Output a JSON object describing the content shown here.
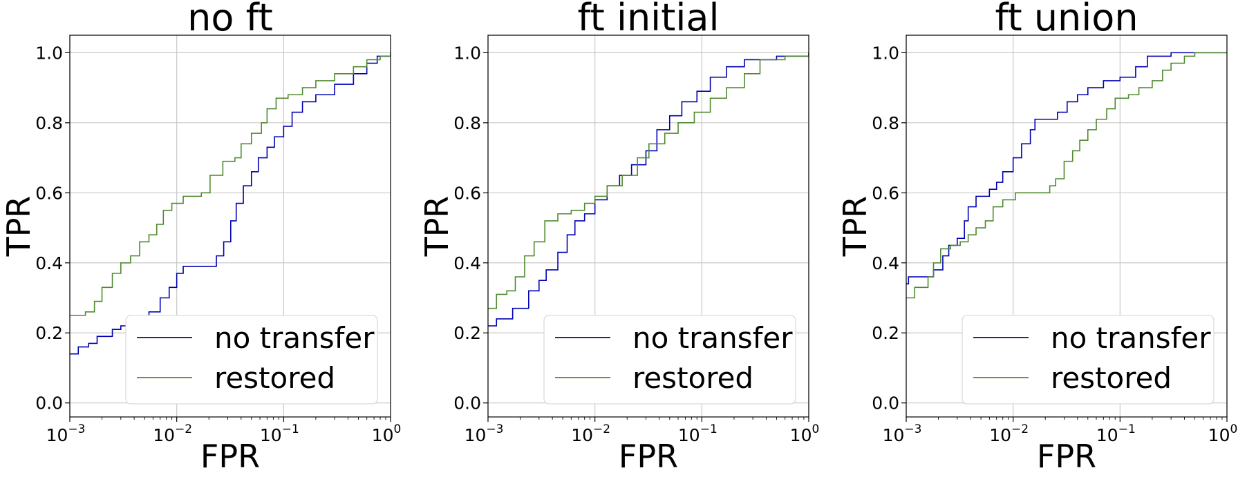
{
  "chart_data": [
    {
      "type": "line",
      "title": "no ft",
      "xlabel": "FPR",
      "ylabel": "TPR",
      "xscale": "log",
      "xlim": [
        0.001,
        1
      ],
      "ylim": [
        -0.04,
        1.05
      ],
      "grid": true,
      "legend_position": "lower-right",
      "x_ticks": [
        {
          "base": "10",
          "exp": "−3"
        },
        {
          "base": "10",
          "exp": "−2"
        },
        {
          "base": "10",
          "exp": "−1"
        },
        {
          "base": "10",
          "exp": "0"
        }
      ],
      "y_ticks": [
        "0.0",
        "0.2",
        "0.4",
        "0.6",
        "0.8",
        "1.0"
      ],
      "series": [
        {
          "name": "no transfer",
          "color": "#0000b3",
          "points": [
            [
              0.001,
              0.14
            ],
            [
              0.0012,
              0.16
            ],
            [
              0.0015,
              0.17
            ],
            [
              0.0018,
              0.19
            ],
            [
              0.0025,
              0.21
            ],
            [
              0.003,
              0.22
            ],
            [
              0.0045,
              0.23
            ],
            [
              0.0055,
              0.26
            ],
            [
              0.007,
              0.3
            ],
            [
              0.0085,
              0.33
            ],
            [
              0.01,
              0.37
            ],
            [
              0.0115,
              0.39
            ],
            [
              0.02,
              0.39
            ],
            [
              0.0235,
              0.42
            ],
            [
              0.0275,
              0.46
            ],
            [
              0.032,
              0.52
            ],
            [
              0.036,
              0.57
            ],
            [
              0.042,
              0.62
            ],
            [
              0.05,
              0.66
            ],
            [
              0.058,
              0.7
            ],
            [
              0.07,
              0.73
            ],
            [
              0.082,
              0.76
            ],
            [
              0.1,
              0.79
            ],
            [
              0.12,
              0.83
            ],
            [
              0.15,
              0.86
            ],
            [
              0.2,
              0.88
            ],
            [
              0.3,
              0.91
            ],
            [
              0.45,
              0.94
            ],
            [
              0.6,
              0.97
            ],
            [
              0.75,
              0.99
            ],
            [
              1.0,
              1.0
            ]
          ]
        },
        {
          "name": "restored",
          "color": "#4f8a2e",
          "points": [
            [
              0.001,
              0.25
            ],
            [
              0.0014,
              0.26
            ],
            [
              0.0017,
              0.29
            ],
            [
              0.002,
              0.33
            ],
            [
              0.0025,
              0.37
            ],
            [
              0.003,
              0.4
            ],
            [
              0.0037,
              0.42
            ],
            [
              0.0045,
              0.46
            ],
            [
              0.0055,
              0.48
            ],
            [
              0.0065,
              0.51
            ],
            [
              0.0075,
              0.55
            ],
            [
              0.009,
              0.57
            ],
            [
              0.0115,
              0.59
            ],
            [
              0.017,
              0.6
            ],
            [
              0.0205,
              0.65
            ],
            [
              0.027,
              0.69
            ],
            [
              0.035,
              0.7
            ],
            [
              0.04,
              0.74
            ],
            [
              0.05,
              0.77
            ],
            [
              0.062,
              0.8
            ],
            [
              0.07,
              0.84
            ],
            [
              0.085,
              0.87
            ],
            [
              0.11,
              0.88
            ],
            [
              0.15,
              0.9
            ],
            [
              0.2,
              0.92
            ],
            [
              0.3,
              0.94
            ],
            [
              0.45,
              0.96
            ],
            [
              0.6,
              0.98
            ],
            [
              0.8,
              0.99
            ],
            [
              1.0,
              1.0
            ]
          ]
        }
      ]
    },
    {
      "type": "line",
      "title": "ft initial",
      "xlabel": "FPR",
      "ylabel": "TPR",
      "xscale": "log",
      "xlim": [
        0.001,
        1
      ],
      "ylim": [
        -0.04,
        1.05
      ],
      "grid": true,
      "legend_position": "lower-right",
      "x_ticks": [
        {
          "base": "10",
          "exp": "−3"
        },
        {
          "base": "10",
          "exp": "−2"
        },
        {
          "base": "10",
          "exp": "−1"
        },
        {
          "base": "10",
          "exp": "0"
        }
      ],
      "y_ticks": [
        "0.0",
        "0.2",
        "0.4",
        "0.6",
        "0.8",
        "1.0"
      ],
      "series": [
        {
          "name": "no transfer",
          "color": "#0000b3",
          "points": [
            [
              0.001,
              0.22
            ],
            [
              0.0012,
              0.24
            ],
            [
              0.0017,
              0.27
            ],
            [
              0.0024,
              0.32
            ],
            [
              0.003,
              0.35
            ],
            [
              0.0035,
              0.38
            ],
            [
              0.0045,
              0.43
            ],
            [
              0.0055,
              0.48
            ],
            [
              0.0065,
              0.52
            ],
            [
              0.008,
              0.54
            ],
            [
              0.01,
              0.58
            ],
            [
              0.013,
              0.62
            ],
            [
              0.017,
              0.65
            ],
            [
              0.022,
              0.68
            ],
            [
              0.03,
              0.72
            ],
            [
              0.038,
              0.78
            ],
            [
              0.05,
              0.82
            ],
            [
              0.065,
              0.86
            ],
            [
              0.09,
              0.89
            ],
            [
              0.12,
              0.93
            ],
            [
              0.17,
              0.96
            ],
            [
              0.25,
              0.98
            ],
            [
              0.5,
              0.99
            ],
            [
              1.0,
              1.0
            ]
          ]
        },
        {
          "name": "restored",
          "color": "#4f8a2e",
          "points": [
            [
              0.001,
              0.27
            ],
            [
              0.0012,
              0.31
            ],
            [
              0.0015,
              0.32
            ],
            [
              0.0018,
              0.36
            ],
            [
              0.0022,
              0.42
            ],
            [
              0.0027,
              0.46
            ],
            [
              0.0034,
              0.52
            ],
            [
              0.0045,
              0.54
            ],
            [
              0.006,
              0.55
            ],
            [
              0.008,
              0.57
            ],
            [
              0.01,
              0.59
            ],
            [
              0.013,
              0.62
            ],
            [
              0.018,
              0.65
            ],
            [
              0.025,
              0.7
            ],
            [
              0.032,
              0.74
            ],
            [
              0.045,
              0.77
            ],
            [
              0.06,
              0.8
            ],
            [
              0.085,
              0.83
            ],
            [
              0.12,
              0.87
            ],
            [
              0.17,
              0.9
            ],
            [
              0.25,
              0.94
            ],
            [
              0.35,
              0.98
            ],
            [
              0.6,
              0.99
            ],
            [
              1.0,
              1.0
            ]
          ]
        }
      ]
    },
    {
      "type": "line",
      "title": "ft union",
      "xlabel": "FPR",
      "ylabel": "TPR",
      "xscale": "log",
      "xlim": [
        0.001,
        1
      ],
      "ylim": [
        -0.04,
        1.05
      ],
      "grid": true,
      "legend_position": "lower-right",
      "x_ticks": [
        {
          "base": "10",
          "exp": "−3"
        },
        {
          "base": "10",
          "exp": "−2"
        },
        {
          "base": "10",
          "exp": "−1"
        },
        {
          "base": "10",
          "exp": "0"
        }
      ],
      "y_ticks": [
        "0.0",
        "0.2",
        "0.4",
        "0.6",
        "0.8",
        "1.0"
      ],
      "series": [
        {
          "name": "no transfer",
          "color": "#0000b3",
          "points": [
            [
              0.001,
              0.34
            ],
            [
              0.00105,
              0.36
            ],
            [
              0.0018,
              0.38
            ],
            [
              0.0022,
              0.42
            ],
            [
              0.0025,
              0.45
            ],
            [
              0.003,
              0.47
            ],
            [
              0.0035,
              0.52
            ],
            [
              0.0038,
              0.56
            ],
            [
              0.0045,
              0.59
            ],
            [
              0.006,
              0.61
            ],
            [
              0.007,
              0.63
            ],
            [
              0.008,
              0.66
            ],
            [
              0.01,
              0.7
            ],
            [
              0.012,
              0.74
            ],
            [
              0.0145,
              0.78
            ],
            [
              0.016,
              0.81
            ],
            [
              0.023,
              0.81
            ],
            [
              0.026,
              0.83
            ],
            [
              0.032,
              0.86
            ],
            [
              0.04,
              0.88
            ],
            [
              0.05,
              0.9
            ],
            [
              0.07,
              0.92
            ],
            [
              0.1,
              0.93
            ],
            [
              0.14,
              0.96
            ],
            [
              0.18,
              0.99
            ],
            [
              0.3,
              1.0
            ],
            [
              1.0,
              1.0
            ]
          ]
        },
        {
          "name": "restored",
          "color": "#4f8a2e",
          "points": [
            [
              0.001,
              0.3
            ],
            [
              0.0012,
              0.33
            ],
            [
              0.0016,
              0.36
            ],
            [
              0.0018,
              0.4
            ],
            [
              0.0021,
              0.44
            ],
            [
              0.0026,
              0.45
            ],
            [
              0.0032,
              0.46
            ],
            [
              0.0038,
              0.48
            ],
            [
              0.0045,
              0.5
            ],
            [
              0.0055,
              0.52
            ],
            [
              0.0065,
              0.56
            ],
            [
              0.008,
              0.58
            ],
            [
              0.0105,
              0.6
            ],
            [
              0.02,
              0.6
            ],
            [
              0.022,
              0.62
            ],
            [
              0.025,
              0.64
            ],
            [
              0.03,
              0.69
            ],
            [
              0.036,
              0.72
            ],
            [
              0.042,
              0.75
            ],
            [
              0.05,
              0.78
            ],
            [
              0.06,
              0.81
            ],
            [
              0.075,
              0.84
            ],
            [
              0.09,
              0.87
            ],
            [
              0.12,
              0.88
            ],
            [
              0.15,
              0.9
            ],
            [
              0.2,
              0.92
            ],
            [
              0.25,
              0.95
            ],
            [
              0.3,
              0.97
            ],
            [
              0.4,
              0.99
            ],
            [
              0.5,
              1.0
            ],
            [
              1.0,
              1.0
            ]
          ]
        }
      ]
    }
  ]
}
